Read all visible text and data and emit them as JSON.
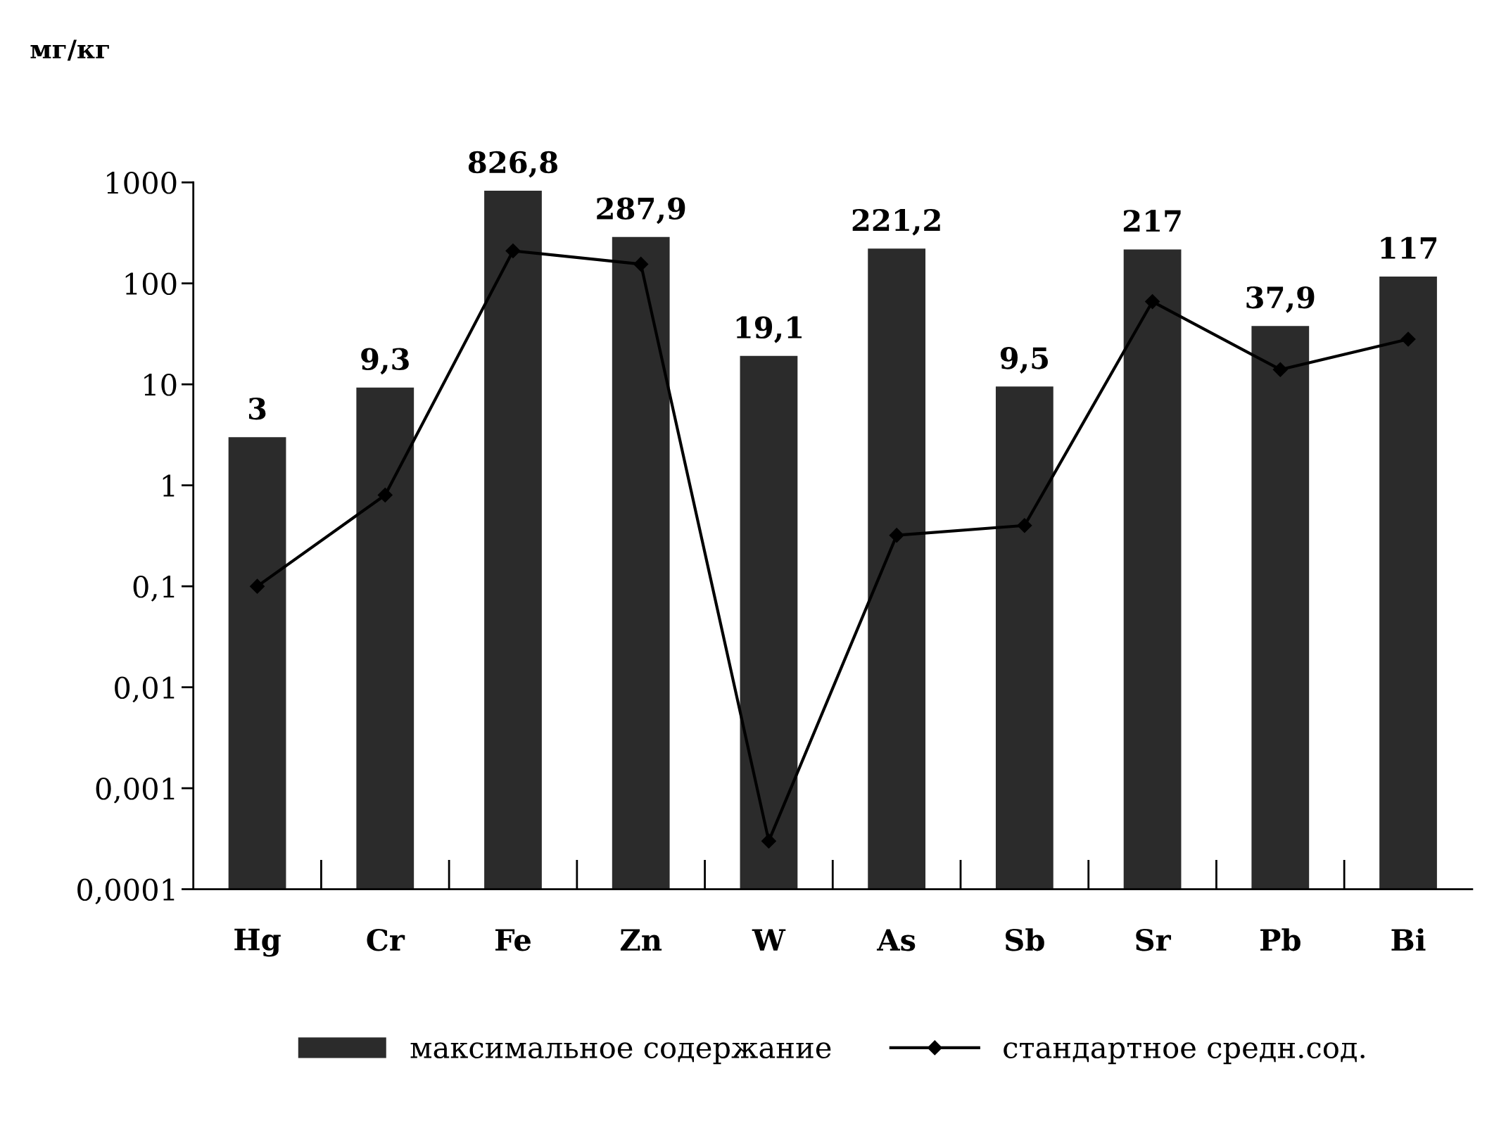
{
  "chart_data": {
    "type": "bar",
    "ylabel": "мг/кг",
    "categories": [
      "Hg",
      "Cr",
      "Fe",
      "Zn",
      "W",
      "As",
      "Sb",
      "Sr",
      "Pb",
      "Bi"
    ],
    "series": [
      {
        "name": "максимальное содержание",
        "color": "#2b2b2b",
        "values": [
          3,
          9.3,
          826.8,
          287.9,
          19.1,
          221.2,
          9.5,
          217,
          37.9,
          117
        ],
        "value_labels": [
          "3",
          "9,3",
          "826,8",
          "287,9",
          "19,1",
          "221,2",
          "9,5",
          "217",
          "37,9",
          "117"
        ]
      },
      {
        "name": "стандартное средн.сод.",
        "type": "line",
        "color": "#000000",
        "marker": "diamond",
        "values": [
          0.1,
          0.8,
          210,
          155,
          0.0003,
          0.32,
          0.4,
          66,
          14,
          28
        ]
      }
    ],
    "log": "y",
    "ylim": [
      0.0001,
      1000
    ],
    "yticks": [
      {
        "value": 0.0001,
        "label": "0,0001"
      },
      {
        "value": 0.001,
        "label": "0,001"
      },
      {
        "value": 0.01,
        "label": "0,01"
      },
      {
        "value": 0.1,
        "label": "0,1"
      },
      1,
      10,
      100,
      1000
    ],
    "grid": false,
    "legend": "bottom"
  }
}
